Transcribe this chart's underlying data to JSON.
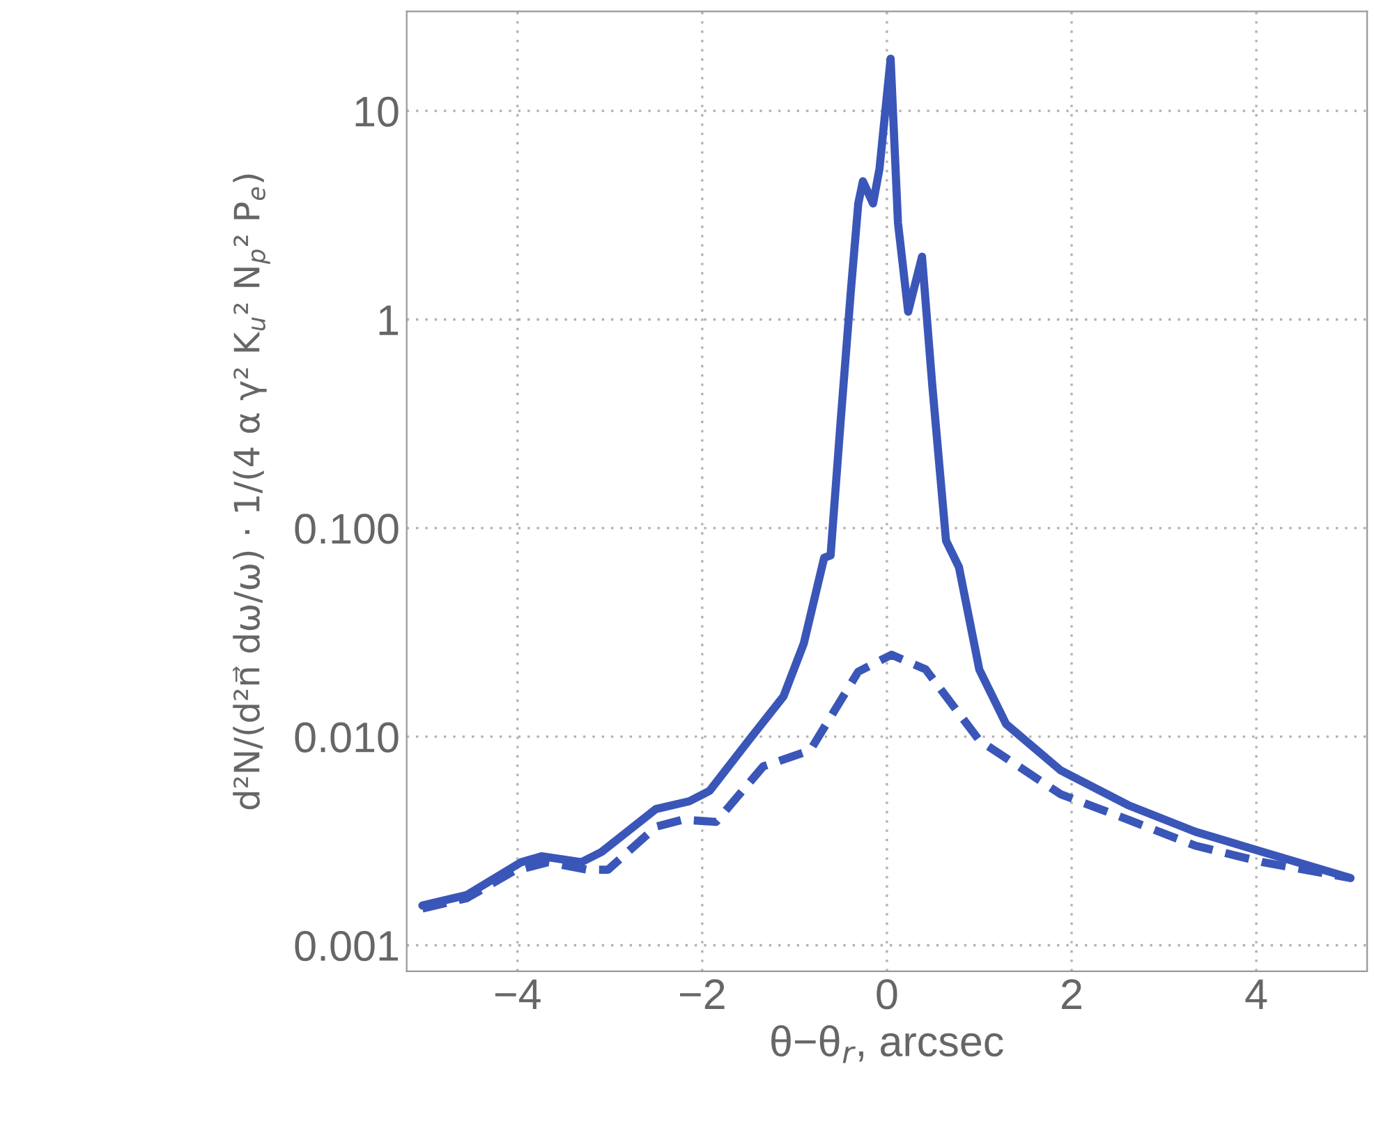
{
  "chart_data": {
    "type": "line",
    "xlabel": "θ−θ$_{r}$, arcsec",
    "ylabel": "d²N/(d²n⃗ dω/ω) · 1/(4 α γ² K$_{u}$² N$_{p}$² P$_{e}$)",
    "log": "y",
    "grid": true,
    "marker": "none",
    "xlim": [
      -5.2,
      5.2
    ],
    "xticks": [
      -4,
      -2,
      0,
      2,
      4
    ],
    "ylim": [
      0.00075,
      30
    ],
    "yticks": [
      {
        "value": 0.001,
        "label": "0.001"
      },
      {
        "value": 0.01,
        "label": "0.010"
      },
      {
        "value": 0.1,
        "label": "0.100"
      },
      {
        "value": 1,
        "label": "1"
      },
      {
        "value": 10,
        "label": "10"
      }
    ],
    "series": [
      {
        "color": "#3a56b8",
        "line_style": "solid",
        "x": [
          -5.03,
          -4.55,
          -3.96,
          -3.74,
          -3.31,
          -3.09,
          -2.5,
          -2.14,
          -1.92,
          -1.48,
          -1.12,
          -0.9,
          -0.68,
          -0.61,
          -0.5,
          -0.39,
          -0.31,
          -0.26,
          -0.15,
          -0.08,
          0.04,
          0.12,
          0.23,
          0.38,
          0.49,
          0.64,
          0.78,
          1.0,
          1.29,
          1.88,
          2.61,
          3.34,
          4.07,
          5.02
        ],
        "values": [
          0.00155,
          0.00174,
          0.0025,
          0.00267,
          0.0025,
          0.0028,
          0.0045,
          0.0049,
          0.0055,
          0.0098,
          0.0156,
          0.028,
          0.072,
          0.074,
          0.33,
          1.38,
          3.6,
          4.6,
          3.6,
          5.3,
          17.8,
          2.9,
          1.09,
          2.0,
          0.49,
          0.087,
          0.065,
          0.021,
          0.0115,
          0.0069,
          0.0047,
          0.0035,
          0.0028,
          0.0021
        ]
      },
      {
        "color": "#3a56b8",
        "line_style": "dashed",
        "x": [
          -5.03,
          -4.55,
          -4.04,
          -3.67,
          -3.24,
          -3.02,
          -2.5,
          -2.21,
          -1.85,
          -1.34,
          -0.83,
          -0.31,
          0.05,
          0.42,
          1.0,
          1.88,
          2.61,
          3.34,
          4.07,
          5.02
        ],
        "values": [
          0.0015,
          0.00168,
          0.00227,
          0.0025,
          0.0023,
          0.0023,
          0.0037,
          0.004,
          0.0039,
          0.0072,
          0.0086,
          0.0205,
          0.0247,
          0.021,
          0.0096,
          0.0053,
          0.004,
          0.003,
          0.0025,
          0.0021
        ]
      }
    ]
  }
}
